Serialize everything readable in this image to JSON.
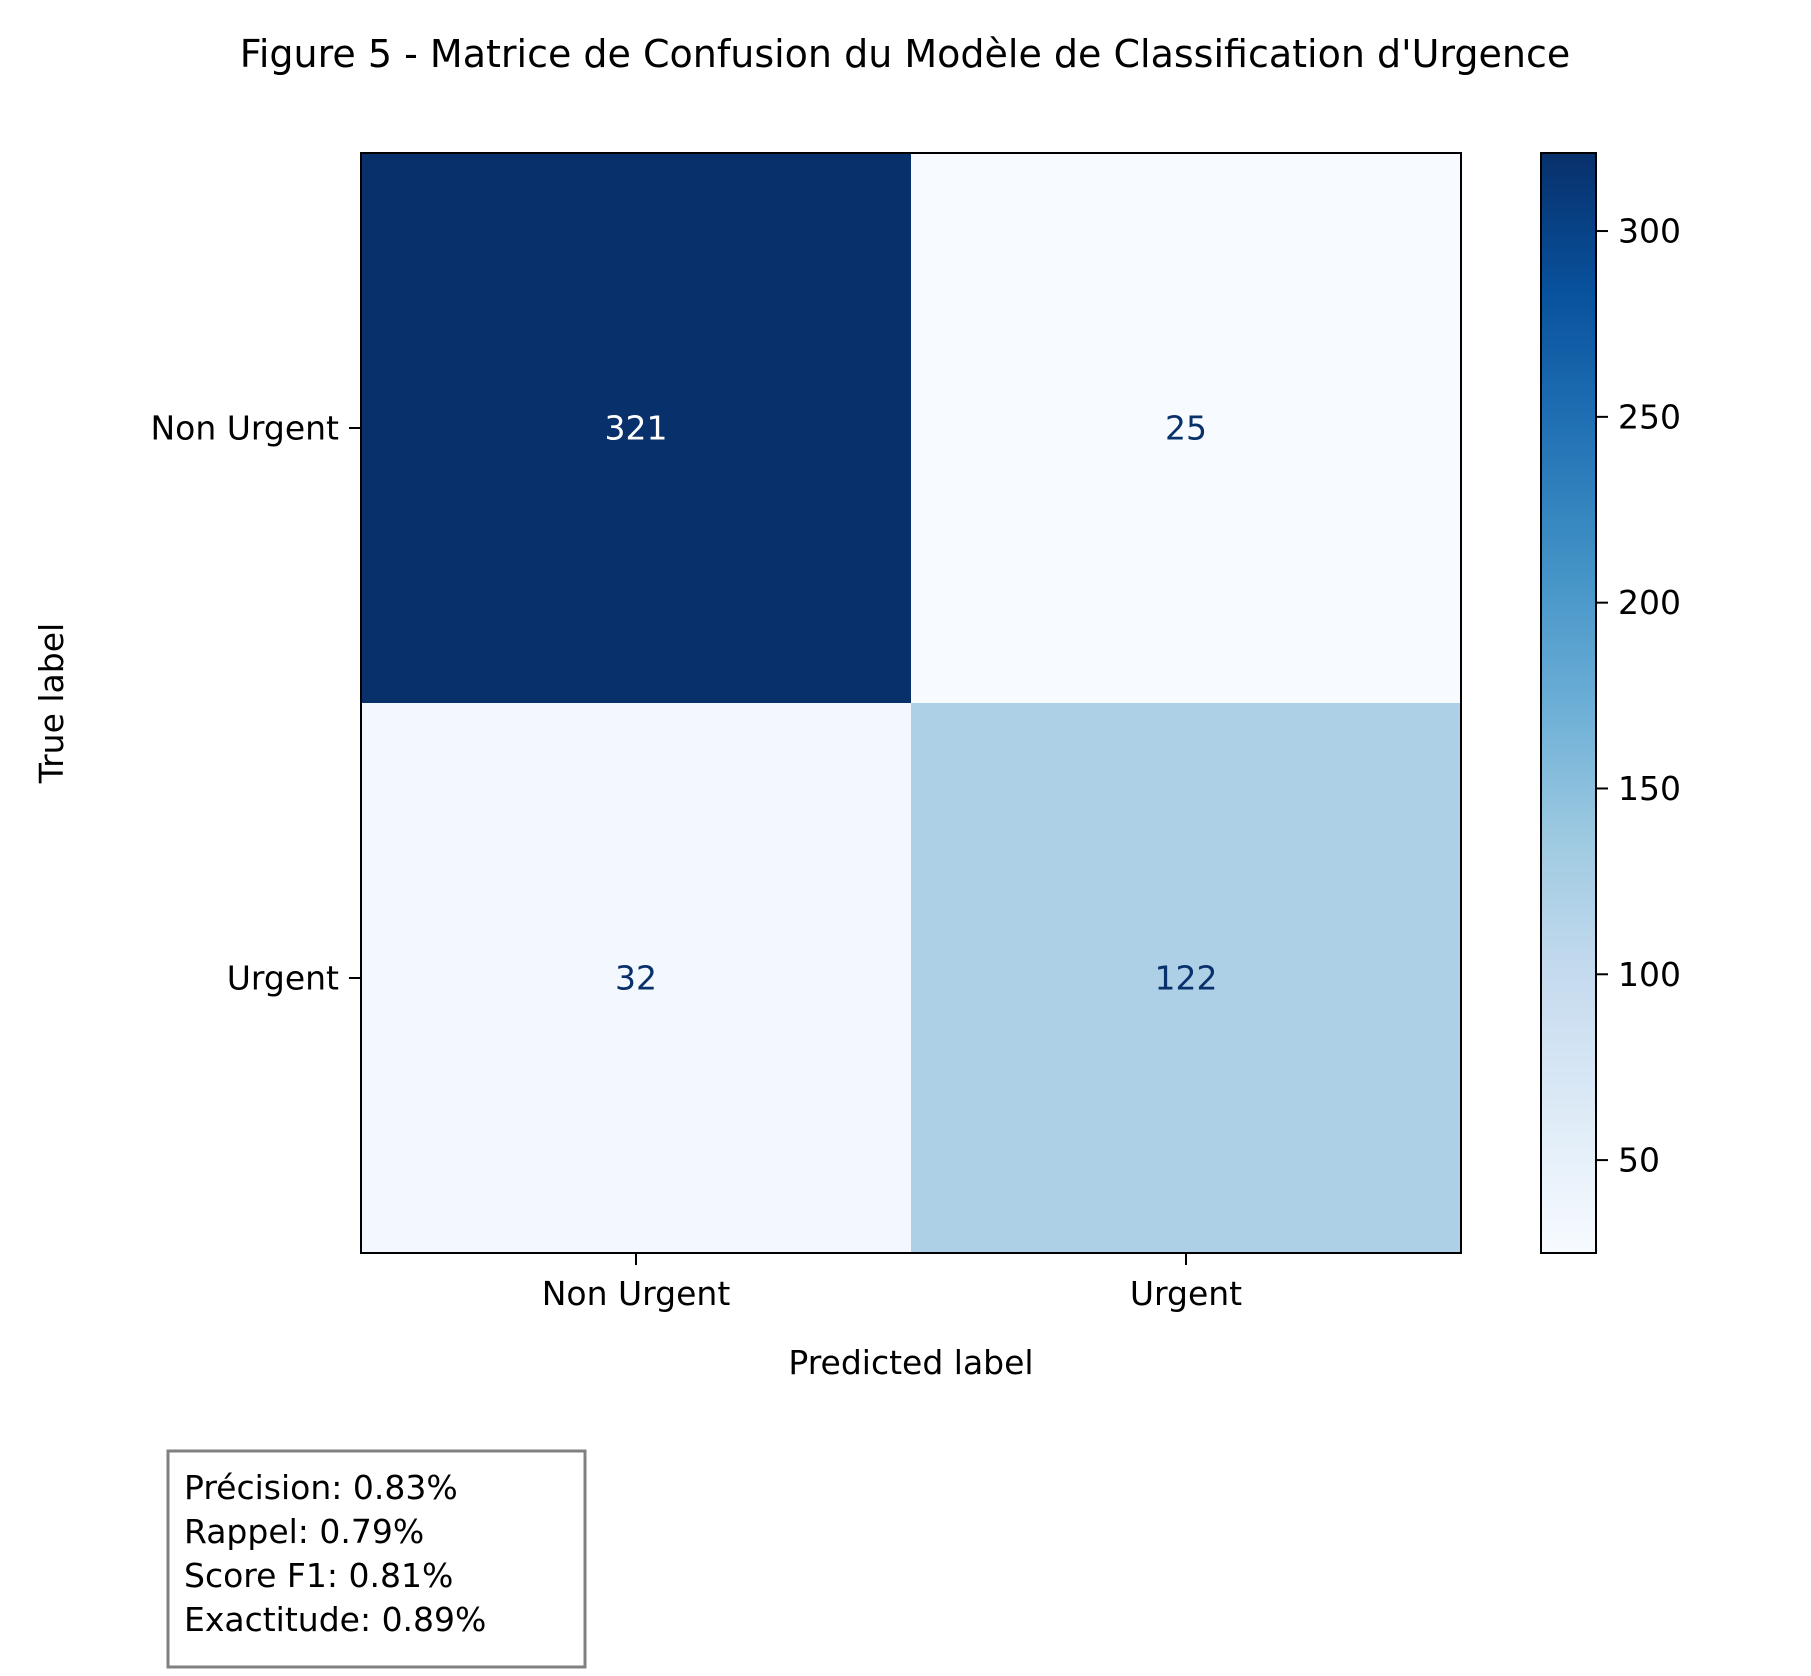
{
  "chart_data": {
    "type": "heatmap",
    "title": "Figure 5 - Matrice de Confusion du Modèle de Classification d'Urgence",
    "xlabel": "Predicted label",
    "ylabel": "True label",
    "x_categories": [
      "Non Urgent",
      "Urgent"
    ],
    "y_categories": [
      "Non Urgent",
      "Urgent"
    ],
    "values": [
      [
        321,
        25
      ],
      [
        32,
        122
      ]
    ],
    "colormap": "Blues",
    "colorbar": {
      "min": 25,
      "max": 321,
      "ticks": [
        50,
        100,
        150,
        200,
        250,
        300
      ]
    },
    "grid": false,
    "metrics": [
      "Précision: 0.83%",
      "Rappel: 0.79%",
      "Score F1: 0.81%",
      "Exactitude: 0.89%"
    ],
    "colors": {
      "cmap_low": "#f7fbff",
      "cmap_high": "#08306b",
      "text_on_dark": "#ffffff",
      "text_on_light": "#08306b",
      "metrics_border": "#808080"
    }
  }
}
